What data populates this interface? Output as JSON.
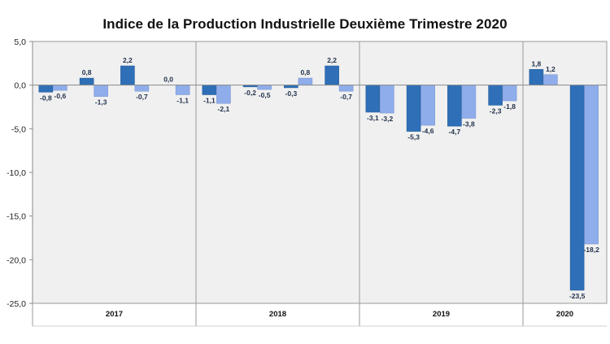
{
  "chart_data": {
    "type": "bar",
    "title": "Indice de la Production Industrielle Deuxième Trimestre 2020",
    "xlabel": "",
    "ylabel": "",
    "ylim": [
      -25,
      5
    ],
    "yticks": [
      "5,0",
      "0,0",
      "-5,0",
      "-10,0",
      "-15,0",
      "-20,0",
      "-25,0"
    ],
    "ytick_values": [
      5,
      0,
      -5,
      -10,
      -15,
      -20,
      -25
    ],
    "grid": false,
    "legend": "none",
    "colors": {
      "series_dark": "#2e6fb7",
      "series_light": "#8fadea",
      "plot_bg": "#f0f0f0",
      "plot_border": "#9a9a9a"
    },
    "year_groups": [
      {
        "year": "2017",
        "bars": [
          [
            -0.8,
            -0.6
          ],
          [
            0.8,
            -1.3
          ],
          [
            2.2,
            -0.7
          ],
          [
            0.0,
            -1.1
          ]
        ]
      },
      {
        "year": "2018",
        "bars": [
          [
            -1.1,
            -2.1
          ],
          [
            -0.2,
            -0.5
          ],
          [
            -0.3,
            0.8
          ],
          [
            2.2,
            -0.7
          ]
        ]
      },
      {
        "year": "2019",
        "bars": [
          [
            -3.1,
            -3.2
          ],
          [
            -5.3,
            -4.6
          ],
          [
            -4.7,
            -3.8
          ],
          [
            -2.3,
            -1.8
          ]
        ]
      },
      {
        "year": "2020",
        "bars": [
          [
            1.8,
            1.2
          ],
          [
            -23.5,
            -18.2
          ]
        ]
      }
    ]
  }
}
